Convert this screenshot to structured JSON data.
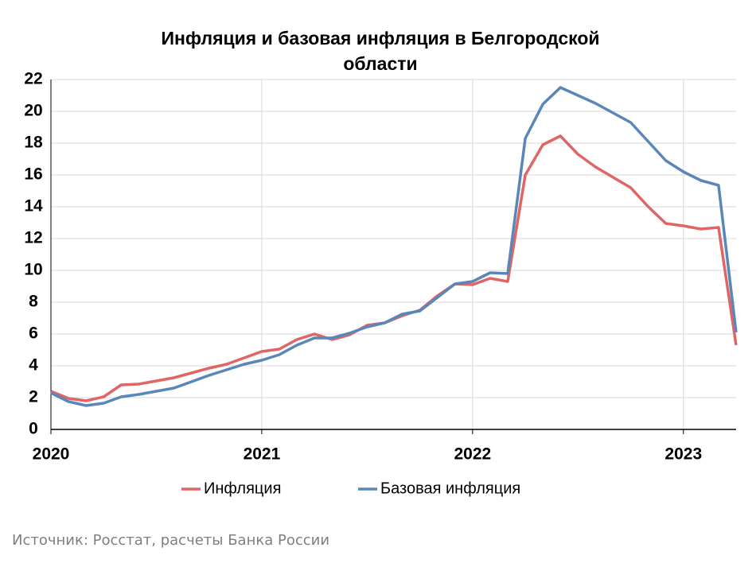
{
  "chart_data": {
    "type": "line",
    "title": "Инфляция и базовая инфляция в Белгородской области",
    "source": "Источник: Росстат, расчеты Банка России",
    "categories": [
      "2020",
      null,
      null,
      null,
      null,
      null,
      null,
      null,
      null,
      null,
      null,
      null,
      "2021",
      null,
      null,
      null,
      null,
      null,
      null,
      null,
      null,
      null,
      null,
      null,
      "2022",
      null,
      null,
      null,
      null,
      null,
      null,
      null,
      null,
      null,
      null,
      null,
      "2023",
      null,
      null,
      null
    ],
    "series": [
      {
        "name": "Инфляция",
        "color": "#e06666",
        "values": [
          2.4,
          1.95,
          1.8,
          2.05,
          2.8,
          2.85,
          3.05,
          3.25,
          3.55,
          3.85,
          4.1,
          4.5,
          4.9,
          5.05,
          5.65,
          6.0,
          5.65,
          5.95,
          6.55,
          6.7,
          7.15,
          7.5,
          8.4,
          9.15,
          9.1,
          9.5,
          9.3,
          16.0,
          17.9,
          18.45,
          17.3,
          16.5,
          15.85,
          15.2,
          14.0,
          12.95,
          12.8,
          12.6,
          12.7,
          5.3
        ]
      },
      {
        "name": "Базовая инфляция",
        "color": "#5b87b8",
        "values": [
          2.3,
          1.75,
          1.5,
          1.65,
          2.05,
          2.2,
          2.4,
          2.6,
          3.0,
          3.4,
          3.75,
          4.1,
          4.35,
          4.7,
          5.3,
          5.75,
          5.75,
          6.05,
          6.45,
          6.7,
          7.25,
          7.45,
          8.3,
          9.15,
          9.3,
          9.85,
          9.8,
          18.3,
          20.45,
          21.5,
          21.0,
          20.5,
          19.9,
          19.3,
          18.1,
          16.9,
          16.2,
          15.65,
          15.35,
          6.1
        ]
      }
    ],
    "ylim": [
      0,
      22
    ],
    "yticks": [
      0,
      2,
      4,
      6,
      8,
      10,
      12,
      14,
      16,
      18,
      20,
      22
    ],
    "grid": true,
    "legend": "bottom"
  }
}
